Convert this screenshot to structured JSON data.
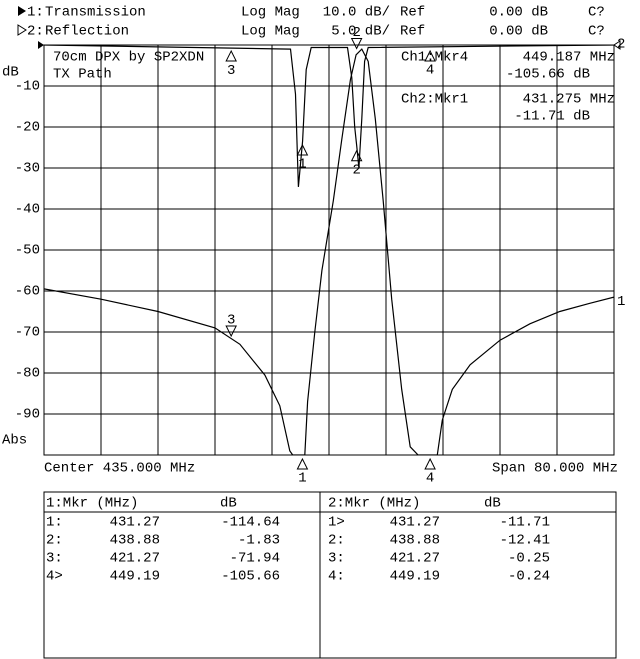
{
  "chart_data": {
    "type": "line",
    "header": [
      {
        "channel": "1:",
        "format": "Log Mag",
        "scale": "10.0 dB/",
        "ref": "Ref",
        "ref_value": "0.00 dB",
        "status": "C?"
      },
      {
        "channel": "2:",
        "format": "Log Mag",
        "scale": "5.0 dB/",
        "ref": "Ref",
        "ref_value": "0.00 dB",
        "status": "C?"
      }
    ],
    "title_lines": [
      "70cm DPX by SP2XDN",
      "TX Path"
    ],
    "ylabel_top": "dB",
    "ylabel_bottom": "Abs",
    "center": "Center 435.000 MHz",
    "span": "Span 80.000 MHz",
    "readouts": [
      {
        "name": "Ch1:Mkr4",
        "freq": "449.187 MHz",
        "value": "-105.66 dB"
      },
      {
        "name": "Ch2:Mkr1",
        "freq": "431.275 MHz",
        "value": "-11.71 dB"
      }
    ],
    "xlim": [
      395,
      475
    ],
    "ylim": [
      -100,
      0
    ],
    "y2lim": [
      -50,
      0
    ],
    "yticks": [
      -10,
      -20,
      -30,
      -40,
      -50,
      -60,
      -70,
      -80,
      -90
    ],
    "grid": true,
    "series": [
      {
        "name": "Transmission",
        "end_label": "1",
        "color": "#000000",
        "x": [
          395,
          403,
          411,
          419,
          422.5,
          426,
          428.1,
          429.5,
          429.9,
          431.6,
          432,
          433,
          434,
          435.6,
          436.8,
          438,
          438.8,
          439.6,
          440.5,
          441.5,
          442.6,
          443.8,
          445.2,
          446.4,
          447.5,
          450.2,
          450.9,
          452.3,
          454.8,
          459,
          463.2,
          467.4,
          471.6,
          475
        ],
        "values": [
          -59.5,
          -62,
          -65,
          -69,
          -73,
          -80.5,
          -88,
          -99,
          -100,
          -100,
          -87,
          -70,
          -55,
          -38,
          -23,
          -8.5,
          -2.4,
          -1,
          -4,
          -18,
          -38,
          -62,
          -84,
          -98,
          -100,
          -100,
          -91.5,
          -84,
          -78,
          -72,
          -68,
          -65,
          -63,
          -61.5
        ]
      },
      {
        "name": "Reflection",
        "end_label": "2",
        "color": "#000000",
        "axis": "y2",
        "x": [
          395,
          429.6,
          430.3,
          430.7,
          431.3,
          431.8,
          432.5,
          437.6,
          438.2,
          438.6,
          438.9,
          439.2,
          439.6,
          440,
          440.5,
          475
        ],
        "values": [
          0,
          -0.5,
          -6,
          -17.3,
          -11.7,
          -3,
          -0.3,
          -0.3,
          -4,
          -10,
          -12.4,
          -15,
          -9,
          -2,
          -0.3,
          0
        ]
      }
    ],
    "markers": [
      {
        "label": "1",
        "x": 431.27,
        "values": [
          -114.64,
          -11.71
        ]
      },
      {
        "label": "2",
        "x": 438.88,
        "values": [
          -1.83,
          -12.41
        ]
      },
      {
        "label": "3",
        "x": 421.27,
        "values": [
          -71.94,
          -0.25
        ]
      },
      {
        "label": "4",
        "x": 449.19,
        "values": [
          -105.66,
          -0.24
        ]
      }
    ],
    "marker_table": {
      "headers": [
        [
          "1:Mkr (MHz)",
          "dB"
        ],
        [
          "2:Mkr (MHz)",
          "dB"
        ]
      ],
      "prefixes": [
        [
          "1:",
          "2:",
          "3:",
          "4>"
        ],
        [
          "1>",
          "2:",
          "3:",
          "4:"
        ]
      ]
    }
  }
}
